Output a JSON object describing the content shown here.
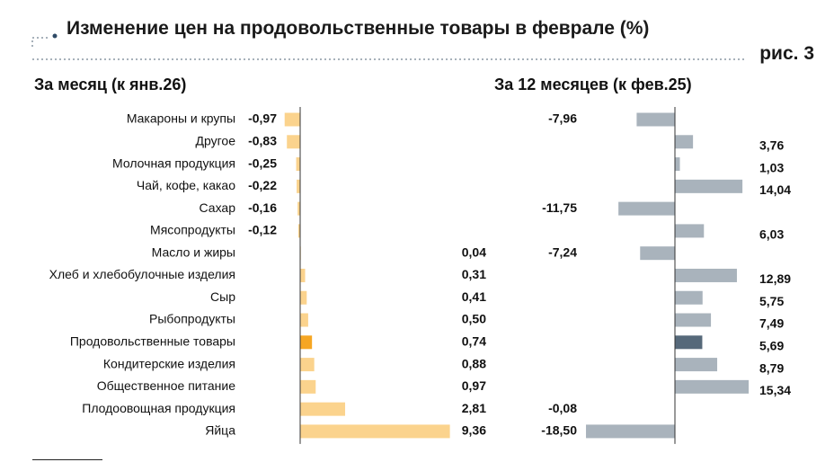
{
  "title": "Изменение цен на продовольственные товары в феврале (%)",
  "figure_label": "рис. 3",
  "colors": {
    "left_bar": "#fbd38d",
    "left_highlight": "#f6a623",
    "right_bar": "#a9b3bc",
    "right_highlight": "#56697a",
    "axis": "#333333",
    "dots": "#8a97a3"
  },
  "chart_data": [
    {
      "type": "bar",
      "orientation": "horizontal",
      "title": "За месяц (к янв.26)",
      "categories": [
        "Макароны и крупы",
        "Другое",
        "Молочная продукция",
        "Чай, кофе, какао",
        "Сахар",
        "Мясопродукты",
        "Масло и жиры",
        "Хлеб и хлебобулочные изделия",
        "Сыр",
        "Рыбопродукты",
        "Продовольственные товары",
        "Кондитерские изделия",
        "Общественное питание",
        "Плодоовощная продукция",
        "Яйца"
      ],
      "values": [
        -0.97,
        -0.83,
        -0.25,
        -0.22,
        -0.16,
        -0.12,
        0.04,
        0.31,
        0.41,
        0.5,
        0.74,
        0.88,
        0.97,
        2.81,
        9.36
      ],
      "labels": [
        "-0,97",
        "-0,83",
        "-0,25",
        "-0,22",
        "-0,16",
        "-0,12",
        "0,04",
        "0,31",
        "0,41",
        "0,50",
        "0,74",
        "0,88",
        "0,97",
        "2,81",
        "9,36"
      ],
      "highlight": "Продовольственные товары"
    },
    {
      "type": "bar",
      "orientation": "horizontal",
      "title": "За 12 месяцев (к фев.25)",
      "categories": [
        "Макароны и крупы",
        "Другое",
        "Молочная продукция",
        "Чай, кофе, какао",
        "Сахар",
        "Мясопродукты",
        "Масло и жиры",
        "Хлеб и хлебобулочные изделия",
        "Сыр",
        "Рыбопродукты",
        "Продовольственные товары",
        "Кондитерские изделия",
        "Общественное питание",
        "Плодоовощная продукция",
        "Яйца"
      ],
      "values": [
        -7.96,
        3.76,
        1.03,
        14.04,
        -11.75,
        6.03,
        -7.24,
        12.89,
        5.75,
        7.49,
        5.69,
        8.79,
        15.34,
        -0.08,
        -18.5
      ],
      "labels": [
        "-7,96",
        "3,76",
        "1,03",
        "14,04",
        "-11,75",
        "6,03",
        "-7,24",
        "12,89",
        "5,75",
        "7,49",
        "5,69",
        "8,79",
        "15,34",
        "-0,08",
        "-18,50"
      ],
      "highlight": "Продовольственные товары"
    }
  ]
}
